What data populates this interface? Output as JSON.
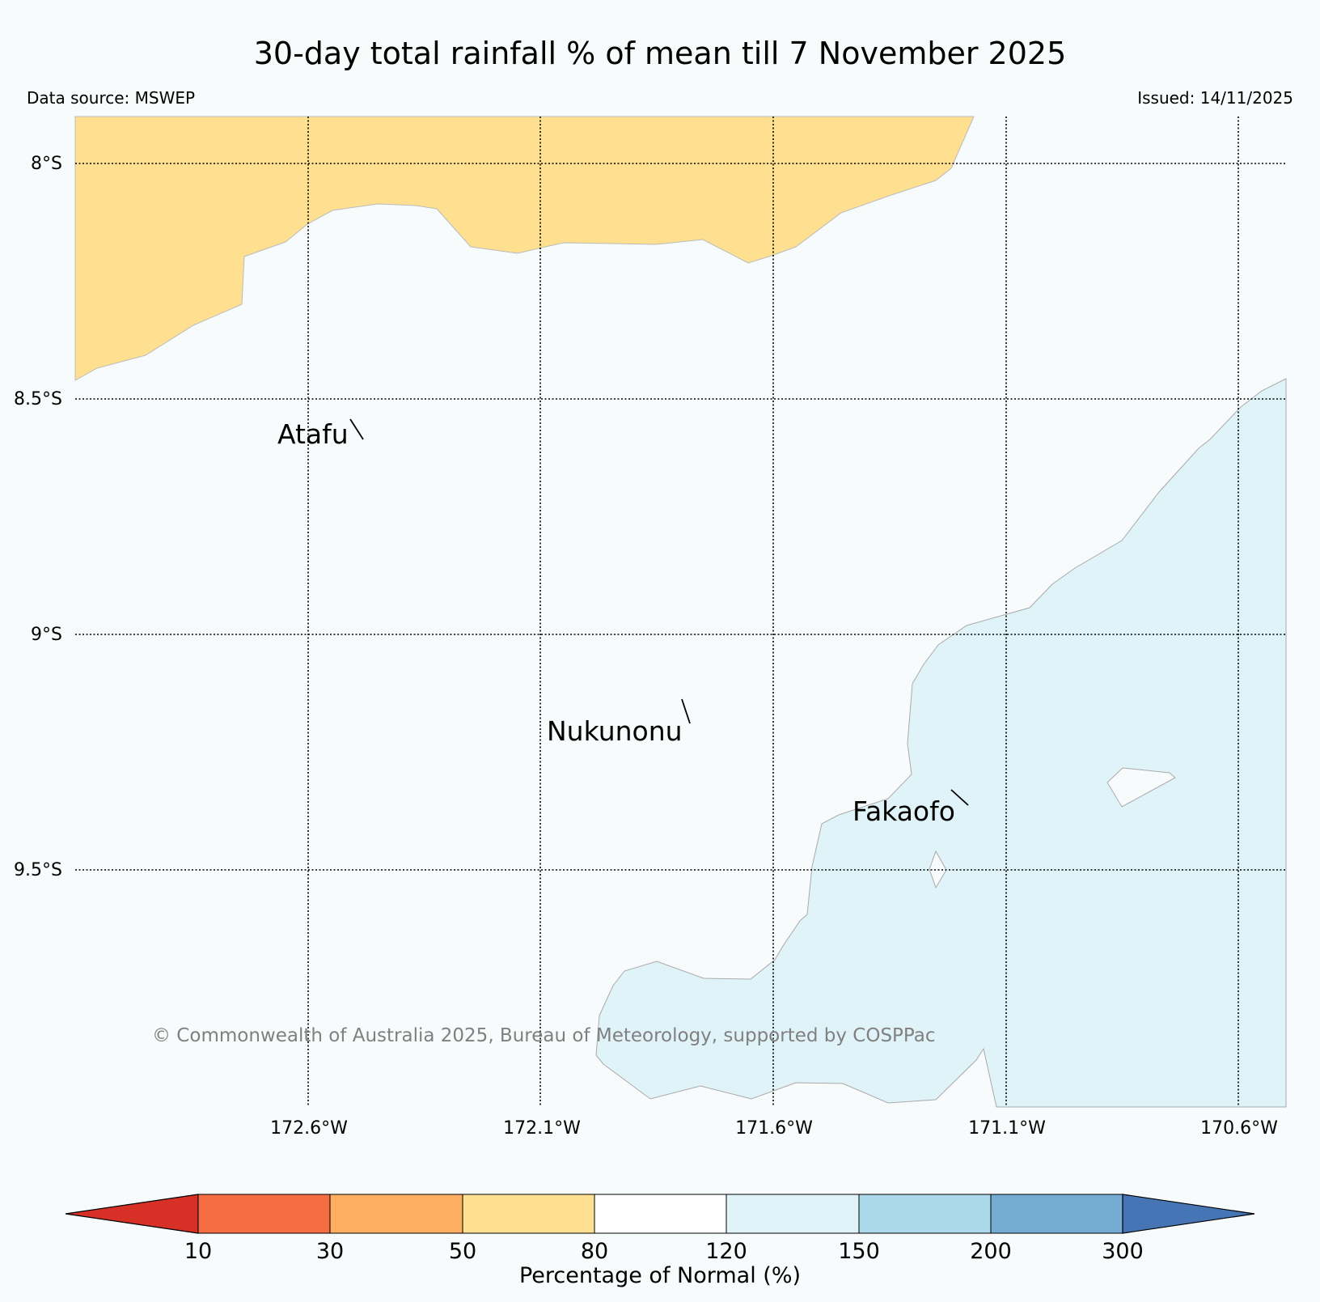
{
  "title": "30-day total rainfall % of mean till 7 November 2025",
  "data_source": "Data source: MSWEP",
  "issued": "Issued: 14/11/2025",
  "copyright": "© Commonwealth of Australia 2025, Bureau of Meteorology, supported by COSPPac",
  "map": {
    "lat_labels": [
      "8°S",
      "8.5°S",
      "9°S",
      "9.5°S"
    ],
    "lon_labels": [
      "172.6°W",
      "172.1°W",
      "171.6°W",
      "171.1°W",
      "170.6°W"
    ],
    "places": [
      {
        "name": "Atafu"
      },
      {
        "name": "Nukunonu"
      },
      {
        "name": "Fakaofo"
      }
    ],
    "regions": [
      {
        "category": "50-80",
        "color": "#fee090",
        "location": "northern edge"
      },
      {
        "category": "120-150",
        "color": "#e0f3f8",
        "location": "south-east"
      }
    ]
  },
  "colorbar": {
    "label": "Percentage of Normal (%)",
    "ticks": [
      "10",
      "30",
      "50",
      "80",
      "120",
      "150",
      "200",
      "300"
    ],
    "under_color": "#d73027",
    "over_color": "#4575b4",
    "bins": [
      {
        "range": "10-30",
        "color": "#f46d43"
      },
      {
        "range": "30-50",
        "color": "#fdae61"
      },
      {
        "range": "50-80",
        "color": "#fee090"
      },
      {
        "range": "80-120",
        "color": "#ffffff"
      },
      {
        "range": "120-150",
        "color": "#e0f3f8"
      },
      {
        "range": "150-200",
        "color": "#abd9e9"
      },
      {
        "range": "200-300",
        "color": "#74add1"
      }
    ]
  }
}
